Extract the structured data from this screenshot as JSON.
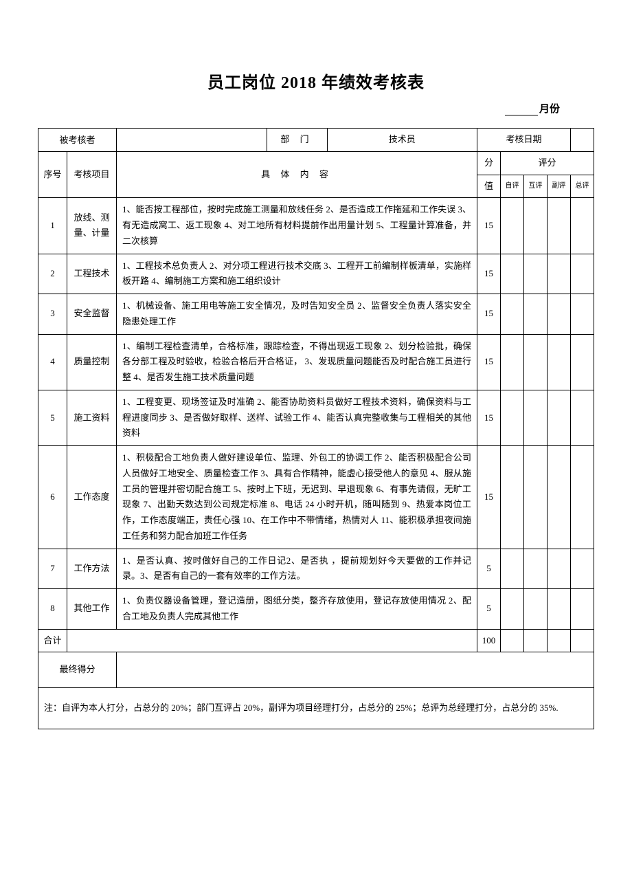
{
  "page": {
    "title": "员工岗位 2018 年绩效考核表",
    "month_label": "月份"
  },
  "header": {
    "assessee_label": "被考核者",
    "dept_label": "部   门",
    "dept_value": "技术员",
    "date_label": "考核日期",
    "seq_label": "序号",
    "item_label": "考核项目",
    "content_label": "具 体 内 容",
    "score_label_1": "分",
    "score_label_2": "值",
    "rating_label": "评分",
    "rating_cols": [
      "自评",
      "互评",
      "副评",
      "总评"
    ]
  },
  "rows": [
    {
      "seq": "1",
      "item": "放线、测量、计量",
      "content": "1、能否按工程部位，按时完成施工测量和放线任务 2、是否造成工作拖延和工作失误 3、有无造成窝工、返工现象 4、对工地所有材料提前作出用量计划 5、工程量计算准备，并二次核算",
      "score": "15"
    },
    {
      "seq": "2",
      "item": "工程技术",
      "content": "1、工程技术总负责人 2、对分项工程进行技术交底 3、工程开工前编制样板清单，实施样板开路 4、编制施工方案和施工组织设计",
      "score": "15"
    },
    {
      "seq": "3",
      "item": "安全监督",
      "content": "1、机械设备、施工用电等施工安全情况，及时告知安全员 2、监督安全负责人落实安全隐患处理工作",
      "score": "15"
    },
    {
      "seq": "4",
      "item": "质量控制",
      "content": "1、编制工程检查清单，合格标准，跟踪检查，不得出现返工现象 2、划分检验批，确保各分部工程及时验收，检验合格后开合格证，  3、发现质量问题能否及时配合施工员进行整 4、是否发生施工技术质量问题",
      "score": "15"
    },
    {
      "seq": "5",
      "item": "施工资料",
      "content": "1、工程变更、现场签证及时准确 2、能否协助资料员做好工程技术资料，确保资料与工程进度同步 3、是否做好取样、送样、试验工作 4、能否认真完整收集与工程相关的其他资料",
      "score": "15"
    },
    {
      "seq": "6",
      "item": "工作态度",
      "content": "1、积极配合工地负责人做好建设单位、监理、外包工的协调工作 2、能否积极配合公司人员做好工地安全、质量检查工作 3、具有合作精神，能虚心接受他人的意见 4、服从施工员的管理并密切配合施工 5、按时上下班，无迟到、早退现象 6、有事先请假，无旷工现象 7、出勤天数达到公司规定标准 8、电话 24 小时开机，随叫随到 9、热爱本岗位工作，工作态度端正，责任心强  10、在工作中不带情绪，热情对人 11、能积极承担夜间施工任务和努力配合加班工作任务",
      "score": "15"
    },
    {
      "seq": "7",
      "item": "工作方法",
      "content": "1、是否认真、按时做好自己的工作日记2、是否执             ，提前规划好今天要做的工作并记录。3、是否有自己的一套有效率的工作方法。",
      "score": "5"
    },
    {
      "seq": "8",
      "item": "其他工作",
      "content": "1、负责仪器设备管理，登记造册，图纸分类，整齐存放使用，登记存放使用情况 2、配合工地及负责人完成其他工作",
      "score": "5"
    }
  ],
  "footer": {
    "total_label": "合计",
    "total_score": "100",
    "final_label": "最终得分",
    "note": "注：自评为本人打分，占总分的 20%；部门互评占 20%，副评为项目经理打分，占总分的 25%；总评为总经理打分，占总分的 35%."
  }
}
